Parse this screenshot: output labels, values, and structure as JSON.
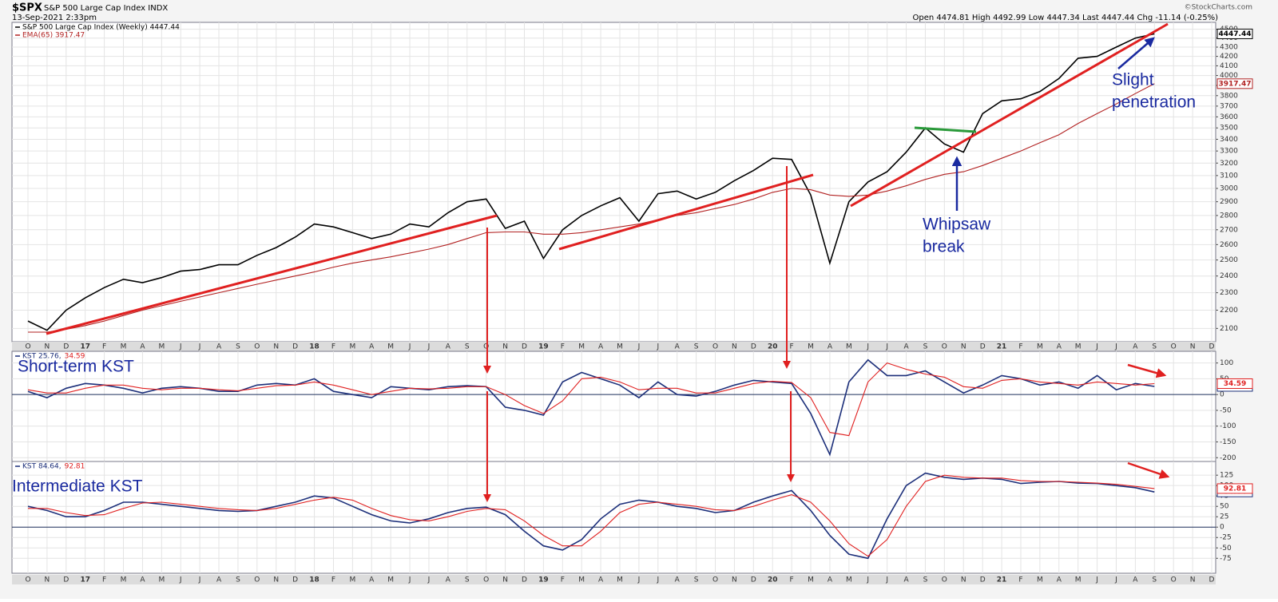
{
  "header": {
    "symbol": "$SPX",
    "name": "S&P 500 Large Cap Index INDX",
    "date": "13-Sep-2021 2:33pm",
    "quote": "Open 4474.81 High 4492.99 Low 4447.34 Last 4447.44 Chg -11.14 (-0.25%)",
    "credit": "©StockCharts.com"
  },
  "chart_data": [
    {
      "type": "line",
      "log_scale": true,
      "grid": true,
      "xaxis_labels": true,
      "categories": [
        "O",
        "N",
        "D",
        "17",
        "F",
        "M",
        "A",
        "M",
        "J",
        "J",
        "A",
        "S",
        "O",
        "N",
        "D",
        "18",
        "F",
        "M",
        "A",
        "M",
        "J",
        "J",
        "A",
        "S",
        "O",
        "N",
        "D",
        "19",
        "F",
        "M",
        "A",
        "M",
        "J",
        "J",
        "A",
        "S",
        "O",
        "N",
        "D",
        "20",
        "F",
        "M",
        "A",
        "M",
        "J",
        "J",
        "A",
        "S",
        "O",
        "N",
        "D",
        "21",
        "F",
        "M",
        "A",
        "M",
        "J",
        "J",
        "A",
        "S",
        "O",
        "N",
        "D"
      ],
      "ylim": [
        2030,
        4580
      ],
      "yticks": [
        2100,
        2200,
        2300,
        2400,
        2500,
        2600,
        2700,
        2800,
        2900,
        3000,
        3100,
        3200,
        3300,
        3400,
        3500,
        3600,
        3700,
        3800,
        3900,
        4000,
        4100,
        4200,
        4300,
        4400,
        4500
      ],
      "series": [
        {
          "name": "S&P 500 Large Cap Index (Weekly) 4447.44",
          "color": "#000000",
          "values": [
            2140,
            2090,
            2200,
            2270,
            2330,
            2380,
            2360,
            2390,
            2430,
            2440,
            2470,
            2470,
            2530,
            2580,
            2650,
            2740,
            2720,
            2680,
            2640,
            2670,
            2740,
            2720,
            2820,
            2900,
            2920,
            2710,
            2760,
            2510,
            2700,
            2800,
            2870,
            2930,
            2760,
            2960,
            2980,
            2920,
            2970,
            3060,
            3140,
            3240,
            3230,
            2950,
            2480,
            2900,
            3050,
            3130,
            3290,
            3500,
            3360,
            3290,
            3630,
            3750,
            3770,
            3840,
            3970,
            4180,
            4200,
            4300,
            4400,
            4447.44,
            null,
            null,
            null
          ]
        },
        {
          "name": "EMA(65) 3917.47",
          "color": "#b22222",
          "values": [
            2080,
            2080,
            2095,
            2115,
            2140,
            2170,
            2200,
            2225,
            2250,
            2275,
            2300,
            2325,
            2350,
            2375,
            2400,
            2425,
            2455,
            2480,
            2500,
            2520,
            2545,
            2570,
            2600,
            2640,
            2680,
            2685,
            2685,
            2670,
            2670,
            2680,
            2700,
            2720,
            2740,
            2770,
            2800,
            2820,
            2850,
            2880,
            2920,
            2970,
            3000,
            2990,
            2950,
            2940,
            2950,
            2980,
            3020,
            3070,
            3110,
            3130,
            3180,
            3240,
            3300,
            3370,
            3440,
            3540,
            3630,
            3720,
            3820,
            3917.47,
            null,
            null,
            null
          ]
        }
      ],
      "annotations": [
        {
          "lines": [
            "Whipsaw",
            "break"
          ]
        },
        {
          "lines": [
            "Slight",
            "penetration"
          ]
        }
      ]
    },
    {
      "type": "line",
      "log_scale": false,
      "grid": true,
      "xaxis_labels": false,
      "title": "Short-term KST",
      "categories": [
        "O",
        "N",
        "D",
        "17",
        "F",
        "M",
        "A",
        "M",
        "J",
        "J",
        "A",
        "S",
        "O",
        "N",
        "D",
        "18",
        "F",
        "M",
        "A",
        "M",
        "J",
        "J",
        "A",
        "S",
        "O",
        "N",
        "D",
        "19",
        "F",
        "M",
        "A",
        "M",
        "J",
        "J",
        "A",
        "S",
        "O",
        "N",
        "D",
        "20",
        "F",
        "M",
        "A",
        "M",
        "J",
        "J",
        "A",
        "S",
        "O",
        "N",
        "D",
        "21",
        "F",
        "M",
        "A",
        "M",
        "J",
        "J",
        "A",
        "S",
        "O",
        "N",
        "D"
      ],
      "ylim": [
        -212,
        137
      ],
      "yticks": [
        100,
        50,
        0,
        -50,
        -100,
        -150,
        -200
      ],
      "series": [
        {
          "name": "KST 25.76,",
          "color": "#1c2f7a",
          "values": [
            10,
            -10,
            20,
            35,
            30,
            20,
            5,
            20,
            25,
            20,
            10,
            10,
            30,
            35,
            30,
            50,
            10,
            0,
            -10,
            25,
            20,
            15,
            25,
            28,
            25,
            -40,
            -50,
            -65,
            40,
            70,
            50,
            30,
            -10,
            40,
            0,
            -5,
            10,
            30,
            45,
            40,
            35,
            -60,
            -190,
            40,
            110,
            60,
            60,
            75,
            40,
            5,
            30,
            60,
            50,
            30,
            40,
            20,
            60,
            15,
            35,
            25.76,
            null,
            null,
            null
          ]
        },
        {
          "name": "34.59",
          "color": "#e02020",
          "values": [
            15,
            5,
            5,
            20,
            30,
            30,
            20,
            15,
            20,
            20,
            15,
            12,
            20,
            28,
            30,
            40,
            30,
            15,
            0,
            10,
            20,
            18,
            20,
            25,
            25,
            0,
            -35,
            -60,
            -20,
            50,
            55,
            40,
            15,
            20,
            20,
            5,
            5,
            20,
            35,
            42,
            38,
            -10,
            -120,
            -130,
            40,
            100,
            80,
            65,
            55,
            25,
            20,
            45,
            50,
            40,
            35,
            30,
            40,
            35,
            30,
            34.59,
            null,
            null,
            null
          ]
        }
      ]
    },
    {
      "type": "line",
      "log_scale": false,
      "grid": true,
      "xaxis_labels": true,
      "title": "Intermediate KST",
      "categories": [
        "O",
        "N",
        "D",
        "17",
        "F",
        "M",
        "A",
        "M",
        "J",
        "J",
        "A",
        "S",
        "O",
        "N",
        "D",
        "18",
        "F",
        "M",
        "A",
        "M",
        "J",
        "J",
        "A",
        "S",
        "O",
        "N",
        "D",
        "19",
        "F",
        "M",
        "A",
        "M",
        "J",
        "J",
        "A",
        "S",
        "O",
        "N",
        "D",
        "20",
        "F",
        "M",
        "A",
        "M",
        "J",
        "J",
        "A",
        "S",
        "O",
        "N",
        "D",
        "21",
        "F",
        "M",
        "A",
        "M",
        "J",
        "J",
        "A",
        "S",
        "O",
        "N",
        "D"
      ],
      "ylim": [
        -111,
        158
      ],
      "yticks": [
        125,
        100,
        75,
        50,
        25,
        0,
        -25,
        -50,
        -75
      ],
      "series": [
        {
          "name": "KST 84.64,",
          "color": "#1c2f7a",
          "values": [
            50,
            40,
            25,
            25,
            40,
            60,
            60,
            55,
            50,
            45,
            40,
            38,
            40,
            50,
            60,
            75,
            70,
            50,
            30,
            15,
            10,
            20,
            35,
            45,
            48,
            30,
            -10,
            -45,
            -55,
            -30,
            20,
            55,
            65,
            60,
            50,
            45,
            35,
            40,
            60,
            75,
            88,
            40,
            -20,
            -65,
            -75,
            20,
            100,
            130,
            120,
            115,
            118,
            115,
            105,
            108,
            110,
            106,
            105,
            100,
            95,
            84.64,
            null,
            null,
            null
          ]
        },
        {
          "name": "92.81",
          "color": "#e02020",
          "values": [
            45,
            45,
            35,
            28,
            30,
            45,
            58,
            60,
            55,
            50,
            45,
            42,
            40,
            45,
            55,
            65,
            72,
            65,
            45,
            28,
            18,
            15,
            25,
            38,
            45,
            42,
            15,
            -20,
            -45,
            -45,
            -10,
            35,
            55,
            60,
            55,
            50,
            42,
            40,
            50,
            65,
            78,
            60,
            15,
            -40,
            -70,
            -30,
            50,
            110,
            125,
            120,
            118,
            118,
            112,
            110,
            110,
            108,
            106,
            103,
            98,
            92.81,
            null,
            null,
            null
          ]
        }
      ]
    }
  ]
}
